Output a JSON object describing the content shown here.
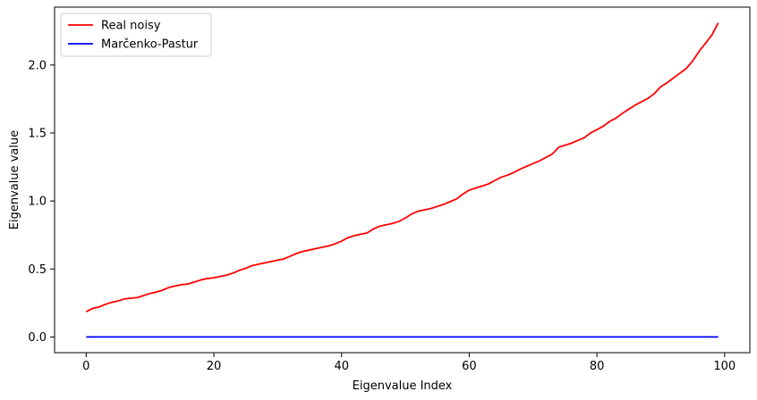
{
  "chart_data": {
    "type": "line",
    "title": "",
    "xlabel": "Eigenvalue Index",
    "ylabel": "Eigenvalue value",
    "xlim": [
      -4.95,
      103.95
    ],
    "ylim": [
      -0.1155,
      2.4255
    ],
    "xticks": [
      0,
      20,
      40,
      60,
      80,
      100
    ],
    "xtick_labels": [
      "0",
      "20",
      "40",
      "60",
      "80",
      "100"
    ],
    "yticks": [
      0.0,
      0.5,
      1.0,
      1.5,
      2.0
    ],
    "ytick_labels": [
      "0.0",
      "0.5",
      "1.0",
      "1.5",
      "2.0"
    ],
    "grid": false,
    "legend_position": "upper-left",
    "series": [
      {
        "name": "Real noisy",
        "color": "#ff0000",
        "x": [
          0,
          1,
          2,
          3,
          4,
          5,
          6,
          7,
          8,
          9,
          10,
          11,
          12,
          13,
          14,
          15,
          16,
          17,
          18,
          19,
          20,
          21,
          22,
          23,
          24,
          25,
          26,
          27,
          28,
          29,
          30,
          31,
          32,
          33,
          34,
          35,
          36,
          37,
          38,
          39,
          40,
          41,
          42,
          43,
          44,
          45,
          46,
          47,
          48,
          49,
          50,
          51,
          52,
          53,
          54,
          55,
          56,
          57,
          58,
          59,
          60,
          61,
          62,
          63,
          64,
          65,
          66,
          67,
          68,
          69,
          70,
          71,
          72,
          73,
          74,
          75,
          76,
          77,
          78,
          79,
          80,
          81,
          82,
          83,
          84,
          85,
          86,
          87,
          88,
          89,
          90,
          91,
          92,
          93,
          94,
          95,
          96,
          97,
          98,
          99
        ],
        "y": [
          0.185,
          0.21,
          0.22,
          0.24,
          0.255,
          0.265,
          0.28,
          0.285,
          0.29,
          0.305,
          0.32,
          0.33,
          0.345,
          0.365,
          0.375,
          0.385,
          0.39,
          0.405,
          0.42,
          0.43,
          0.435,
          0.445,
          0.455,
          0.47,
          0.49,
          0.505,
          0.525,
          0.535,
          0.545,
          0.555,
          0.565,
          0.575,
          0.595,
          0.615,
          0.63,
          0.64,
          0.65,
          0.66,
          0.67,
          0.685,
          0.705,
          0.73,
          0.745,
          0.755,
          0.765,
          0.795,
          0.815,
          0.825,
          0.835,
          0.85,
          0.875,
          0.905,
          0.925,
          0.935,
          0.945,
          0.96,
          0.975,
          0.995,
          1.015,
          1.05,
          1.08,
          1.095,
          1.11,
          1.125,
          1.15,
          1.175,
          1.19,
          1.21,
          1.235,
          1.255,
          1.275,
          1.295,
          1.32,
          1.345,
          1.395,
          1.41,
          1.425,
          1.445,
          1.465,
          1.5,
          1.525,
          1.55,
          1.585,
          1.61,
          1.645,
          1.675,
          1.705,
          1.73,
          1.755,
          1.79,
          1.84,
          1.87,
          1.905,
          1.94,
          1.975,
          2.03,
          2.1,
          2.16,
          2.22,
          2.31
        ]
      },
      {
        "name": "Marčenko-Pastur",
        "color": "#0000ff",
        "x": [
          0,
          99
        ],
        "y": [
          0.0,
          0.0
        ]
      }
    ]
  }
}
